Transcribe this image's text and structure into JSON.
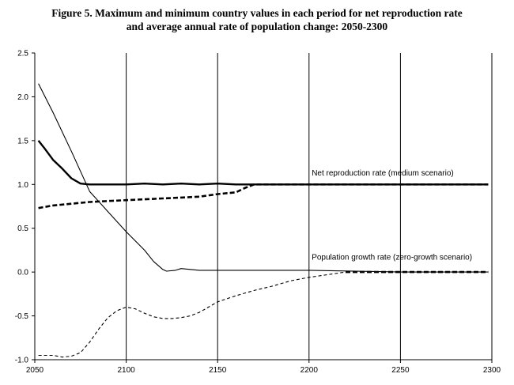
{
  "chart_data": {
    "type": "line",
    "title_line1": "Figure 5. Maximum and minimum country values in each period for net reproduction rate",
    "title_line2": "and average annual rate of population change: 2050-2300",
    "xlabel": "",
    "ylabel": "",
    "xlim": [
      2050,
      2300
    ],
    "ylim": [
      -1.0,
      2.5
    ],
    "xticks": [
      2050,
      2100,
      2150,
      2200,
      2250,
      2300
    ],
    "yticks": [
      2.5,
      2.0,
      1.5,
      1.0,
      0.5,
      0.0,
      -0.5,
      -1.0
    ],
    "grid": "vertical",
    "annotations": [
      {
        "text": "Net reproduction rate (medium scenario)",
        "x": 2150,
        "y": 1.13
      },
      {
        "text": "Population growth rate (zero-growth scenario)",
        "x": 2150,
        "y": 0.17
      }
    ],
    "series": [
      {
        "style": "thick-solid",
        "x": [
          2052,
          2055,
          2060,
          2065,
          2070,
          2075,
          2080,
          2090,
          2100,
          2110,
          2120,
          2130,
          2140,
          2150,
          2160,
          2170,
          2180,
          2190,
          2200,
          2250,
          2298
        ],
        "y": [
          1.5,
          1.42,
          1.28,
          1.18,
          1.07,
          1.01,
          1.0,
          1.0,
          1.0,
          1.01,
          1.0,
          1.01,
          1.0,
          1.01,
          1.0,
          1.0,
          1.0,
          1.0,
          1.0,
          1.0,
          1.0
        ]
      },
      {
        "style": "thick-dashed",
        "x": [
          2052,
          2060,
          2070,
          2080,
          2090,
          2100,
          2110,
          2120,
          2130,
          2140,
          2150,
          2160,
          2165,
          2170,
          2180,
          2200,
          2250,
          2298
        ],
        "y": [
          0.73,
          0.76,
          0.78,
          0.8,
          0.81,
          0.82,
          0.83,
          0.84,
          0.85,
          0.86,
          0.89,
          0.91,
          0.96,
          1.0,
          1.0,
          1.0,
          1.0,
          1.0
        ]
      },
      {
        "style": "thin-solid",
        "x": [
          2052,
          2060,
          2070,
          2080,
          2090,
          2100,
          2110,
          2115,
          2120,
          2122,
          2127,
          2130,
          2135,
          2140,
          2150,
          2160,
          2200,
          2250,
          2298
        ],
        "y": [
          2.15,
          1.82,
          1.38,
          0.92,
          0.69,
          0.46,
          0.25,
          0.12,
          0.03,
          0.01,
          0.02,
          0.04,
          0.03,
          0.02,
          0.02,
          0.02,
          0.02,
          0.0,
          0.0
        ]
      },
      {
        "style": "thin-dashed",
        "x": [
          2052,
          2060,
          2065,
          2070,
          2075,
          2080,
          2085,
          2090,
          2095,
          2100,
          2105,
          2110,
          2115,
          2120,
          2125,
          2130,
          2135,
          2140,
          2145,
          2150,
          2160,
          2170,
          2180,
          2190,
          2200,
          2210,
          2220
        ],
        "y": [
          -0.95,
          -0.95,
          -0.97,
          -0.96,
          -0.92,
          -0.8,
          -0.65,
          -0.52,
          -0.44,
          -0.4,
          -0.42,
          -0.47,
          -0.51,
          -0.53,
          -0.53,
          -0.52,
          -0.5,
          -0.46,
          -0.4,
          -0.34,
          -0.27,
          -0.21,
          -0.16,
          -0.1,
          -0.06,
          -0.03,
          0.0
        ]
      },
      {
        "style": "thick-dashed",
        "x": [
          2220,
          2250,
          2298
        ],
        "y": [
          0.0,
          0.0,
          0.0
        ]
      }
    ]
  }
}
